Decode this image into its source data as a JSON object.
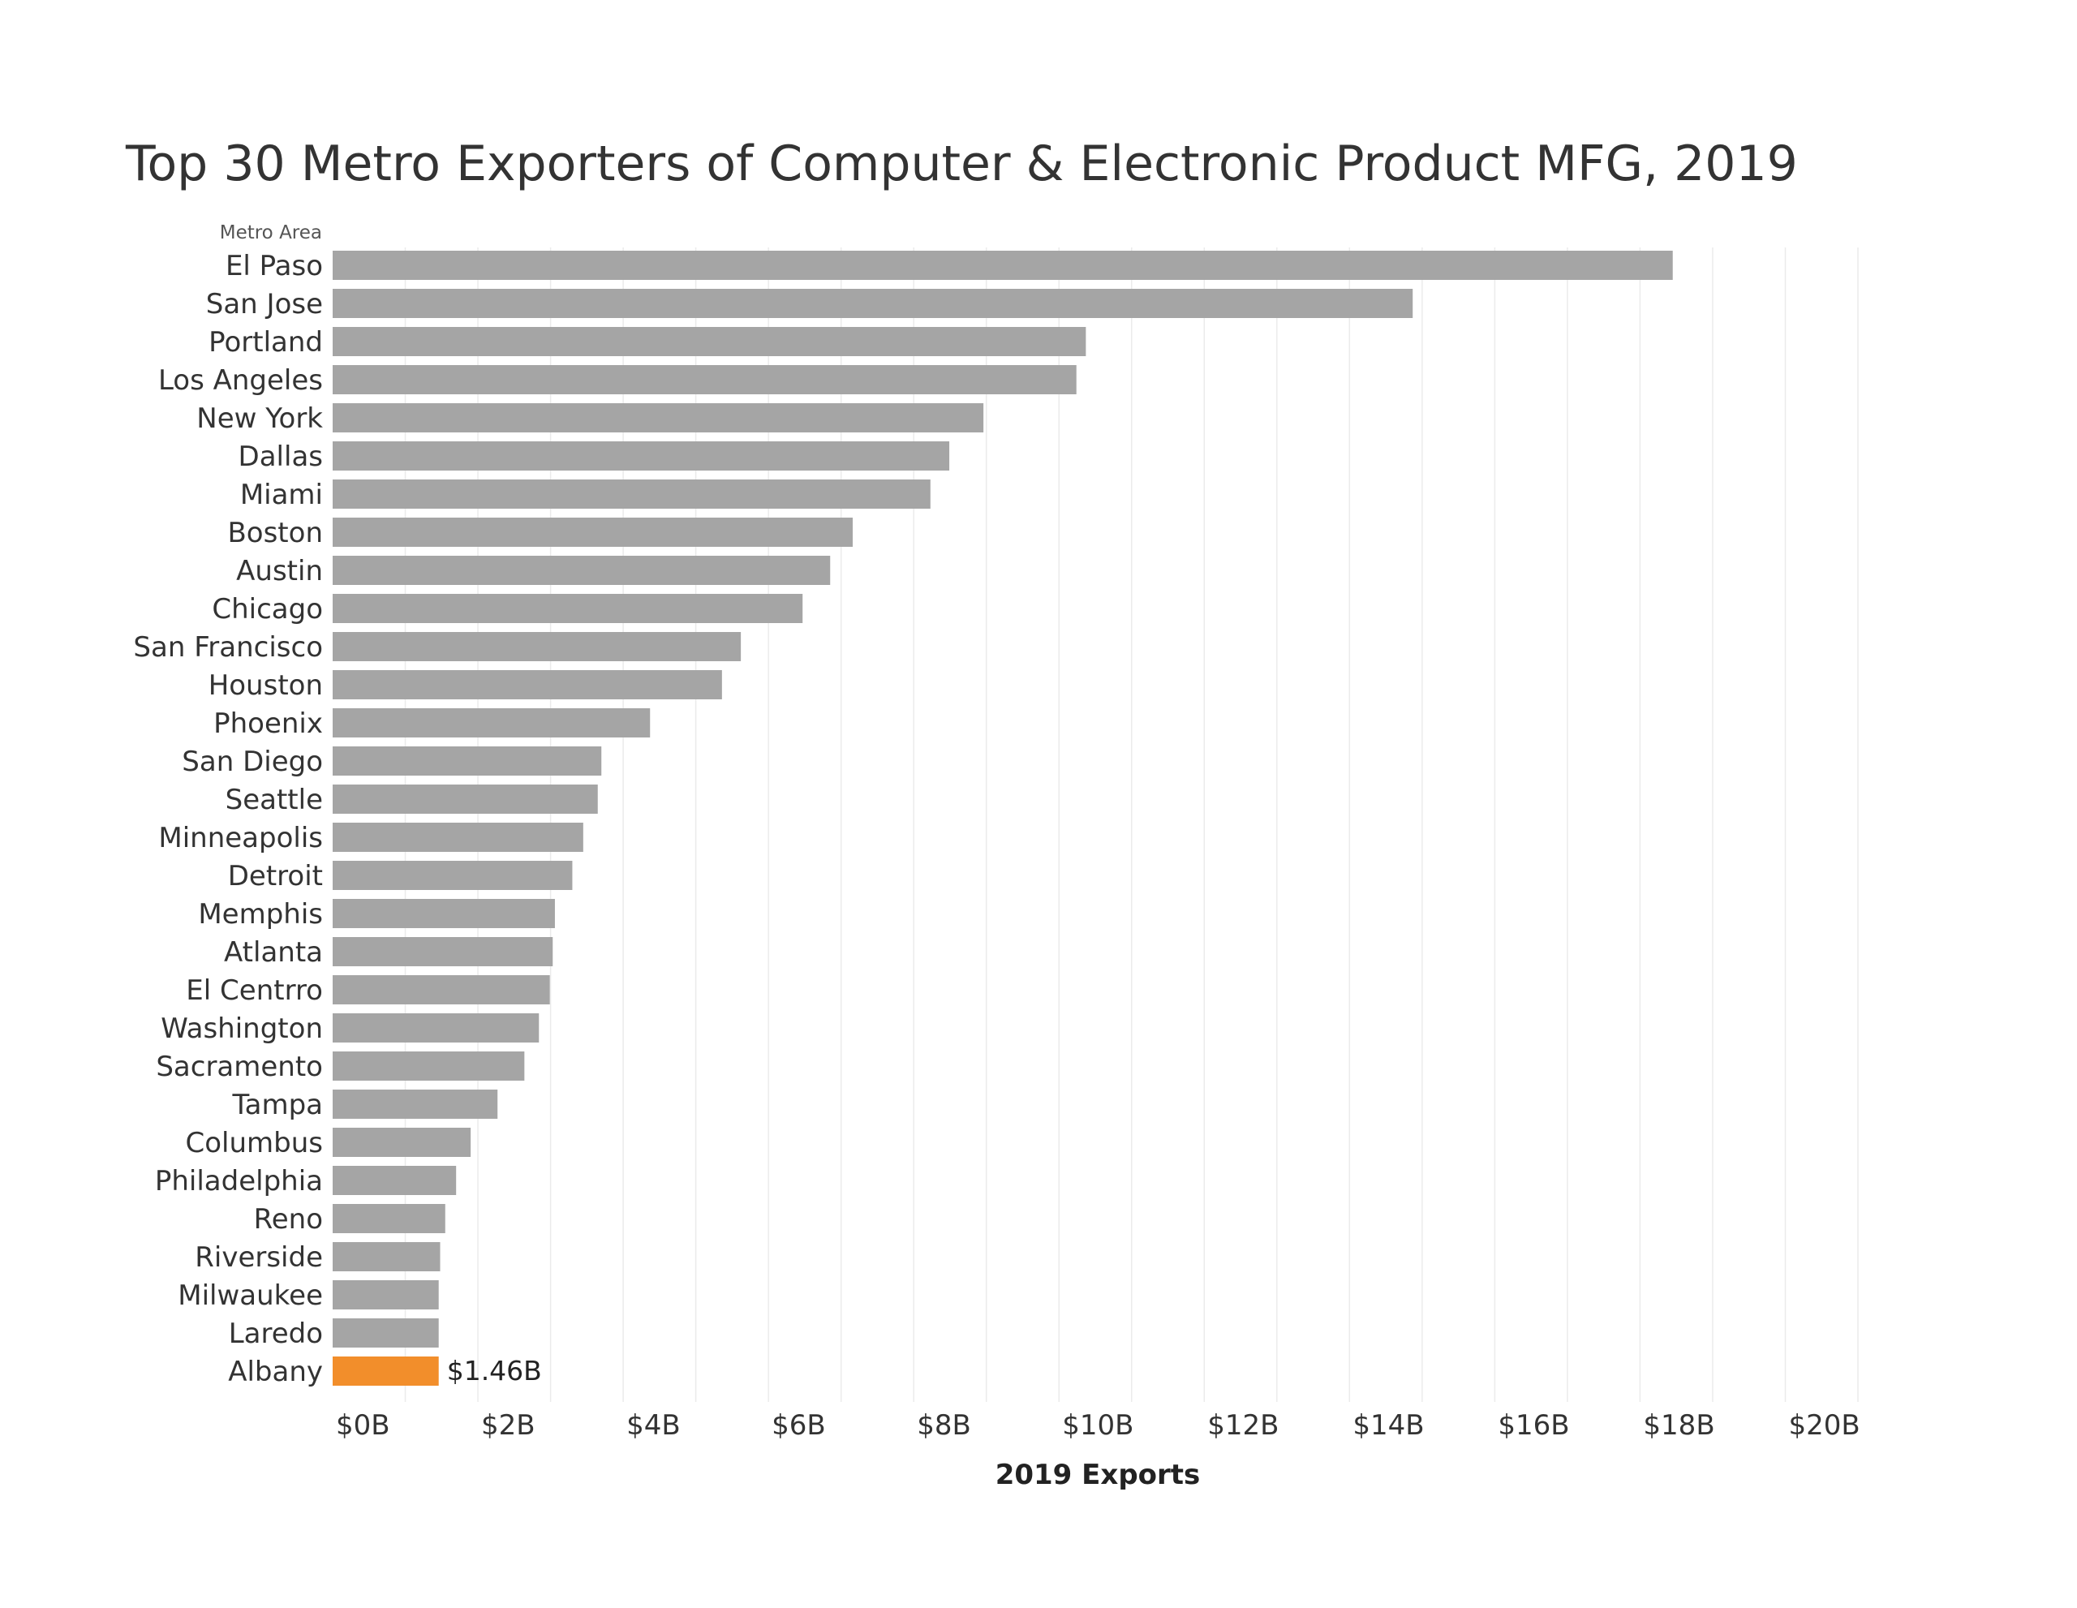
{
  "chart_data": {
    "type": "bar",
    "orientation": "horizontal",
    "title": "Top 30 Metro Exporters of Computer & Electronic Product MFG, 2019",
    "row_header": "Metro Area",
    "xlabel": "2019 Exports",
    "ylabel": "",
    "xlim": [
      0,
      21
    ],
    "x_ticks": [
      0,
      2,
      4,
      6,
      8,
      10,
      12,
      14,
      16,
      18,
      20
    ],
    "x_tick_labels": [
      "$0B",
      "$2B",
      "$4B",
      "$6B",
      "$8B",
      "$10B",
      "$12B",
      "$14B",
      "$16B",
      "$18B",
      "$20B"
    ],
    "grid": "vertical gridlines",
    "categories": [
      "El Paso",
      "San Jose",
      "Portland",
      "Los Angeles",
      "New York",
      "Dallas",
      "Miami",
      "Boston",
      "Austin",
      "Chicago",
      "San Francisco",
      "Houston",
      "Phoenix",
      "San Diego",
      "Seattle",
      "Minneapolis",
      "Detroit",
      "Memphis",
      "Atlanta",
      "El Centrro",
      "Washington",
      "Sacramento",
      "Tampa",
      "Columbus",
      "Philadelphia",
      "Reno",
      "Riverside",
      "Milwaukee",
      "Laredo",
      "Albany"
    ],
    "values": [
      18.45,
      14.87,
      10.37,
      10.24,
      8.96,
      8.49,
      8.23,
      7.16,
      6.85,
      6.47,
      5.62,
      5.36,
      4.37,
      3.7,
      3.65,
      3.45,
      3.3,
      3.06,
      3.03,
      2.99,
      2.84,
      2.64,
      2.27,
      1.9,
      1.7,
      1.55,
      1.48,
      1.46,
      1.46,
      1.46
    ],
    "highlight": {
      "category": "Albany",
      "label": "$1.46B",
      "color": "#f28e2b"
    },
    "colors": {
      "bar": "#a5a5a5",
      "highlight": "#f28e2b",
      "grid": "#ebebeb",
      "text": "#333333"
    }
  }
}
